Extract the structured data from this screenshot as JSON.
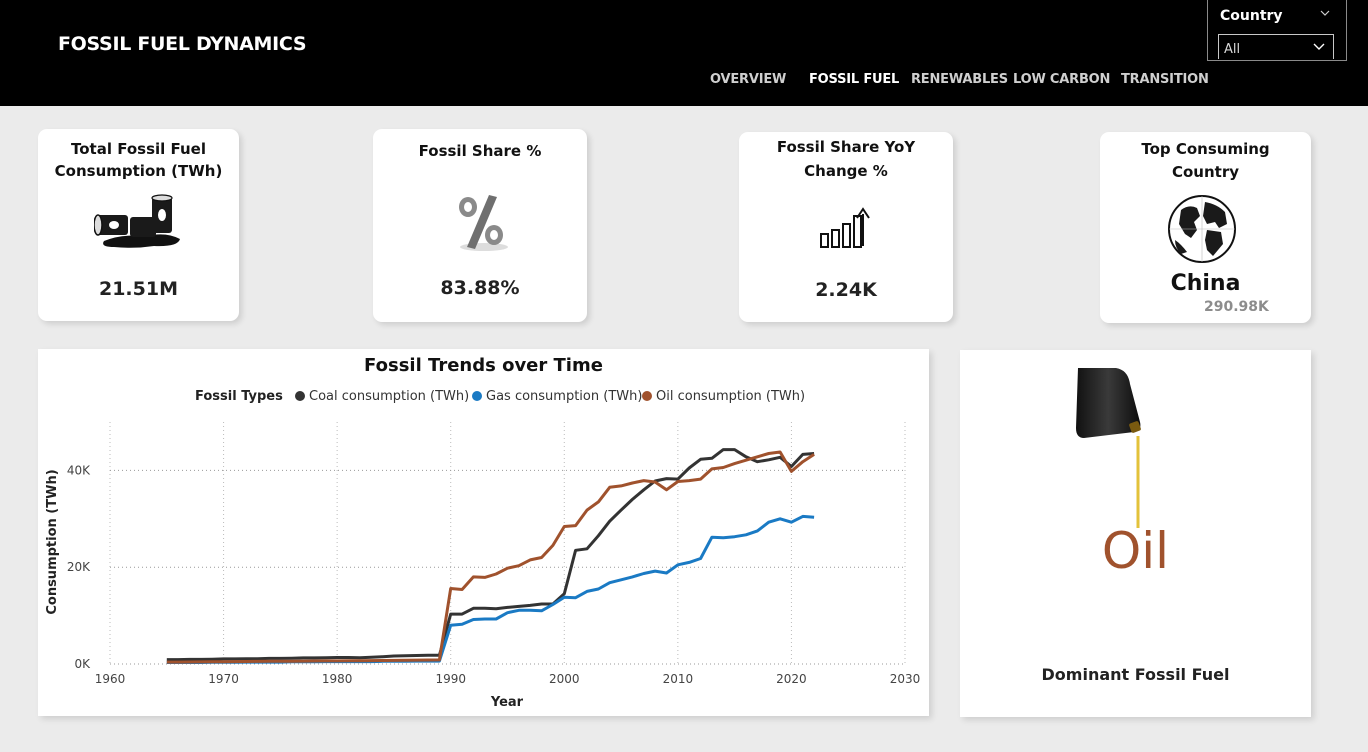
{
  "header": {
    "title": "FOSSIL FUEL DYNAMICS",
    "nav": [
      "OVERVIEW",
      "FOSSIL FUEL",
      "RENEWABLES",
      "LOW CARBON",
      "TRANSITION"
    ],
    "active_nav": "FOSSIL FUEL",
    "slicer": {
      "label": "Country",
      "value": "All"
    }
  },
  "cards": {
    "total": {
      "title_line1": "Total Fossil Fuel",
      "title_line2": "Consumption (TWh)",
      "value": "21.51M",
      "icon": "oil-barrels-icon"
    },
    "share": {
      "title": "Fossil Share %",
      "value": "83.88%",
      "icon": "percent-icon"
    },
    "yoy": {
      "title_line1": "Fossil Share YoY",
      "title_line2": "Change %",
      "value": "2.24K",
      "icon": "growth-bars-icon"
    },
    "top": {
      "title_line1": "Top Consuming",
      "title_line2": "Country",
      "value": "China",
      "subvalue": "290.98K",
      "icon": "globe-icon"
    }
  },
  "dominant": {
    "value": "Oil",
    "label": "Dominant Fossil Fuel",
    "icon": "oil-can-pouring-icon",
    "accent": "#a0522d"
  },
  "chart_data": {
    "type": "line",
    "title": "Fossil Trends over Time",
    "legend_title": "Fossil Types",
    "xlabel": "Year",
    "ylabel": "Consumption (TWh)",
    "xlim": [
      1960,
      2030
    ],
    "ylim": [
      0,
      50000
    ],
    "x_ticks": [
      1960,
      1970,
      1980,
      1990,
      2000,
      2010,
      2020,
      2030
    ],
    "y_ticks": [
      0,
      20000,
      40000
    ],
    "y_tick_labels": [
      "0K",
      "20K",
      "40K"
    ],
    "grid": true,
    "legend_position": "top",
    "x": [
      1965,
      1966,
      1967,
      1968,
      1969,
      1970,
      1971,
      1972,
      1973,
      1974,
      1975,
      1976,
      1977,
      1978,
      1979,
      1980,
      1981,
      1982,
      1983,
      1984,
      1985,
      1986,
      1987,
      1988,
      1989,
      1990,
      1991,
      1992,
      1993,
      1994,
      1995,
      1996,
      1997,
      1998,
      1999,
      2000,
      2001,
      2002,
      2003,
      2004,
      2005,
      2006,
      2007,
      2008,
      2009,
      2010,
      2011,
      2012,
      2013,
      2014,
      2015,
      2016,
      2017,
      2018,
      2019,
      2020,
      2021,
      2022
    ],
    "series": [
      {
        "name": "Coal consumption (TWh)",
        "color": "#333333",
        "values": [
          900,
          900,
          950,
          950,
          1000,
          1050,
          1050,
          1100,
          1100,
          1150,
          1150,
          1200,
          1250,
          1250,
          1300,
          1350,
          1350,
          1300,
          1400,
          1500,
          1650,
          1700,
          1750,
          1800,
          1800,
          10300,
          10300,
          11500,
          11500,
          11400,
          11700,
          11900,
          12100,
          12400,
          12400,
          14500,
          23500,
          23800,
          26500,
          29500,
          31800,
          34000,
          36000,
          37800,
          38300,
          38200,
          40500,
          42300,
          42500,
          44300,
          44300,
          42800,
          41800,
          42200,
          42700,
          40800,
          43300,
          43500
        ]
      },
      {
        "name": "Gas consumption (TWh)",
        "color": "#1a7ac4",
        "values": [
          300,
          300,
          300,
          300,
          350,
          350,
          350,
          400,
          400,
          400,
          400,
          450,
          450,
          450,
          500,
          500,
          500,
          500,
          500,
          550,
          550,
          550,
          600,
          600,
          600,
          8000,
          8200,
          9200,
          9300,
          9300,
          10600,
          11100,
          11100,
          11000,
          12300,
          13800,
          13700,
          15000,
          15500,
          16800,
          17400,
          18000,
          18700,
          19200,
          18800,
          20500,
          21000,
          21800,
          26200,
          26100,
          26300,
          26700,
          27500,
          29300,
          30000,
          29300,
          30500,
          30300
        ]
      },
      {
        "name": "Oil consumption (TWh)",
        "color": "#a0522d",
        "values": [
          400,
          400,
          420,
          430,
          450,
          480,
          500,
          520,
          540,
          550,
          560,
          580,
          600,
          620,
          640,
          650,
          660,
          680,
          700,
          720,
          750,
          780,
          800,
          820,
          850,
          15600,
          15400,
          18000,
          17900,
          18600,
          19800,
          20300,
          21500,
          22000,
          24500,
          28400,
          28600,
          31800,
          33500,
          36500,
          36800,
          37400,
          37900,
          37600,
          36000,
          37700,
          37900,
          38200,
          40300,
          40600,
          41400,
          42100,
          42800,
          43500,
          43800,
          39800,
          41800,
          43300
        ]
      }
    ]
  }
}
